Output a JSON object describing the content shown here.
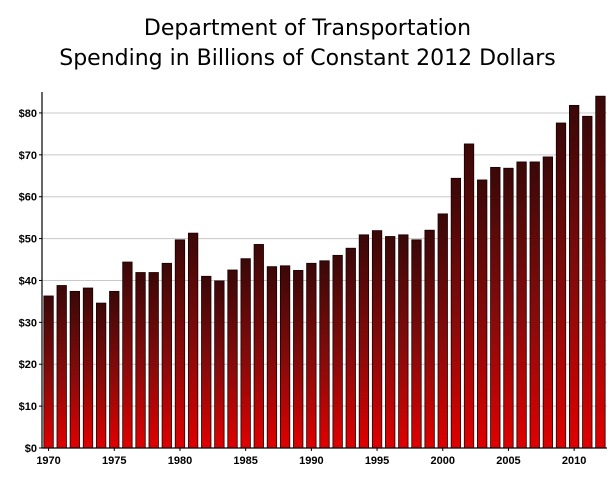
{
  "chart_data": {
    "type": "bar",
    "title_lines": [
      "Department of Transportation",
      "Spending in Billions of Constant 2012 Dollars"
    ],
    "xlabel": "",
    "ylabel": "",
    "ylim": [
      0,
      85
    ],
    "y_ticks": [
      0,
      10,
      20,
      30,
      40,
      50,
      60,
      70,
      80
    ],
    "y_tick_labels": [
      "$0",
      "$10",
      "$20",
      "$30",
      "$40",
      "$50",
      "$60",
      "$70",
      "$80"
    ],
    "x_tick_labels": [
      "1970",
      "1975",
      "1980",
      "1985",
      "1990",
      "1995",
      "2000",
      "2005",
      "2010"
    ],
    "grid": true,
    "legend": "none",
    "colors": {
      "bar_bottom": "#e00000",
      "bar_top": "#3a0808",
      "grid": "#c8c8c8"
    },
    "categories": [
      "1970",
      "1971",
      "1972",
      "1973",
      "1974",
      "1975",
      "1976",
      "1977",
      "1978",
      "1979",
      "1980",
      "1981",
      "1982",
      "1983",
      "1984",
      "1985",
      "1986",
      "1987",
      "1988",
      "1989",
      "1990",
      "1991",
      "1992",
      "1993",
      "1994",
      "1995",
      "1996",
      "1997",
      "1998",
      "1999",
      "2000",
      "2001",
      "2002",
      "2003",
      "2004",
      "2005",
      "2006",
      "2007",
      "2008",
      "2009",
      "2010",
      "2011",
      "2012"
    ],
    "values": [
      36.3,
      38.8,
      37.4,
      38.2,
      34.6,
      37.4,
      44.4,
      41.9,
      41.9,
      44.1,
      49.7,
      51.3,
      41.0,
      39.9,
      42.5,
      45.2,
      48.6,
      43.3,
      43.5,
      42.4,
      44.1,
      44.7,
      46.0,
      47.7,
      50.9,
      51.9,
      50.5,
      50.9,
      49.7,
      52.0,
      55.9,
      64.4,
      72.6,
      64.0,
      67.0,
      66.8,
      68.3,
      68.3,
      69.5,
      77.6,
      81.8,
      79.2,
      84.0
    ]
  }
}
